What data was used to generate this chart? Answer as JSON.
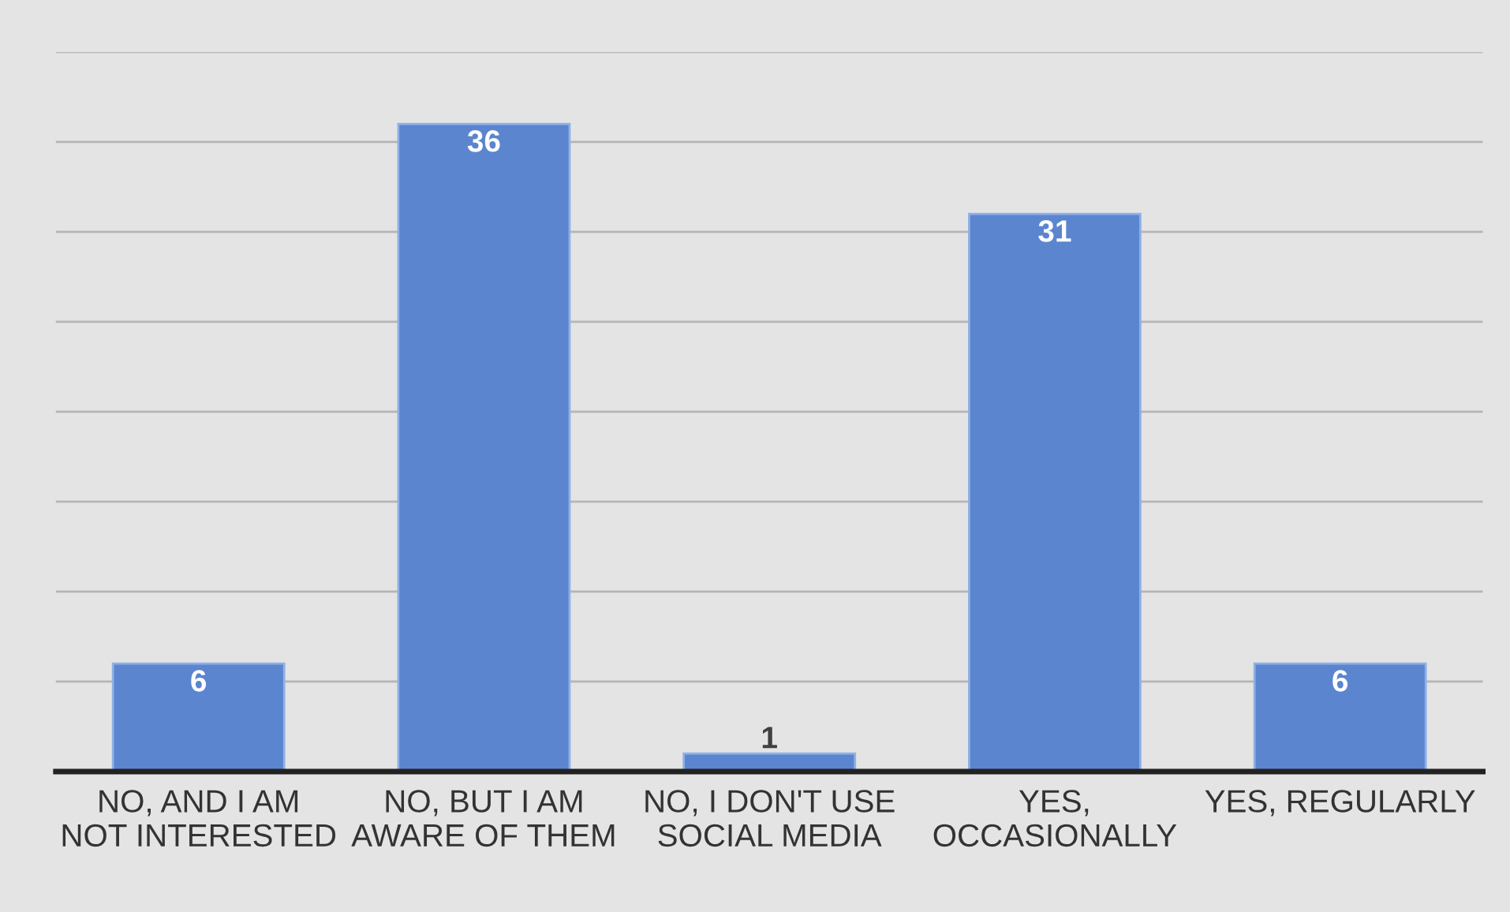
{
  "chart_data": {
    "type": "bar",
    "categories": [
      "NO, AND I AM\nNOT INTERESTED",
      "NO, BUT I AM\nAWARE OF THEM",
      "NO, I DON'T USE\nSOCIAL MEDIA",
      "YES,\nOCCASIONALLY",
      "YES, REGULARLY"
    ],
    "values": [
      6,
      36,
      1,
      31,
      6
    ],
    "color": "#5b85cf",
    "data_labels": true,
    "ylim": [
      0,
      40
    ],
    "yticks": [
      {
        "value": 0,
        "label": null
      },
      {
        "value": 5,
        "label": null
      },
      {
        "value": 10,
        "label": null
      },
      {
        "value": 15,
        "label": null
      },
      {
        "value": 20,
        "label": null
      },
      {
        "value": 25,
        "label": null
      },
      {
        "value": 30,
        "label": null
      },
      {
        "value": 35,
        "label": null
      },
      {
        "value": 40,
        "label": null
      }
    ],
    "grid": "y",
    "tick_labels": "x"
  }
}
